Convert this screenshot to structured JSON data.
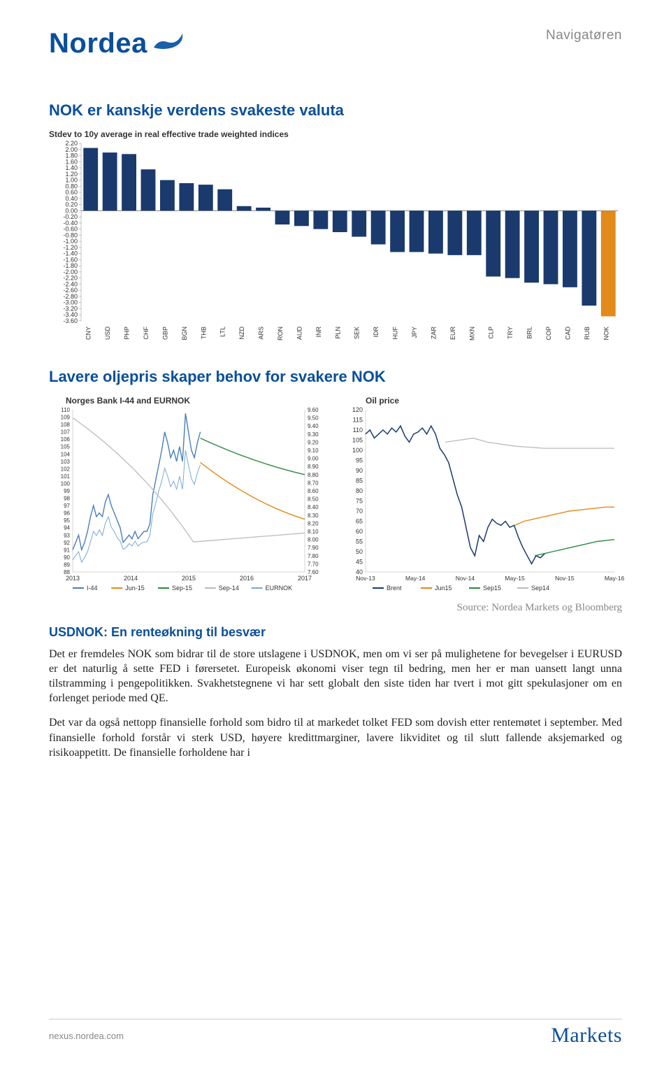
{
  "header_right": "Navigatøren",
  "logo_text": "Nordea",
  "heading1": "NOK er kanskje verdens svakeste valuta",
  "heading2": "Lavere oljepris skaper behov for svakere NOK",
  "source_text": "Source: Nordea Markets og Bloomberg",
  "subheading": "USDNOK: En renteøkning til besvær",
  "para1": "Det er fremdeles NOK som bidrar til de store utslagene i USDNOK, men om vi ser på mulighetene for bevegelser i EURUSD er det naturlig å sette FED i førersetet. Europeisk økonomi viser tegn til bedring, men her er man uansett langt unna tilstramming i pengepolitikken. Svakhetstegnene vi har sett globalt den siste tiden har tvert i mot gitt spekulasjoner om en forlenget periode med QE.",
  "para2": "Det var da også nettopp finansielle forhold som bidro til at markedet tolket FED som dovish etter rentemøtet i september. Med finansielle forhold forstår vi sterk USD, høyere kredittmarginer, lavere likviditet og til slutt fallende aksjemarked og risikoappetitt. De finansielle forholdene har i",
  "footer_left": "nexus.nordea.com",
  "footer_right": "Markets",
  "chart1": {
    "title": "Stdev to 10y average in real effective trade weighted indices",
    "y_min": -3.6,
    "y_max": 2.2,
    "y_step": 0.2,
    "bar_color": "#1a3a6e",
    "highlight_color": "#e28a1a",
    "categories": [
      "CNY",
      "USD",
      "PHP",
      "CHF",
      "GBP",
      "BGN",
      "THB",
      "LTL",
      "NZD",
      "ARS",
      "RON",
      "AUD",
      "INR",
      "PLN",
      "SEK",
      "IDR",
      "HUF",
      "JPY",
      "ZAR",
      "EUR",
      "MXN",
      "CLP",
      "TRY",
      "BRL",
      "COP",
      "CAD",
      "RUB",
      "NOK"
    ],
    "values": [
      2.05,
      1.9,
      1.85,
      1.35,
      1.0,
      0.9,
      0.85,
      0.7,
      0.15,
      0.1,
      -0.45,
      -0.5,
      -0.6,
      -0.7,
      -0.85,
      -1.1,
      -1.35,
      -1.35,
      -1.4,
      -1.45,
      -1.45,
      -2.15,
      -2.2,
      -2.35,
      -2.4,
      -2.5,
      -3.1,
      -3.45
    ],
    "highlight_index": 27
  },
  "chart2": {
    "title": "Norges Bank I-44 and EURNOK",
    "y_left_min": 88,
    "y_left_max": 110,
    "y_left_step": 1,
    "y_right_min": 7.6,
    "y_right_max": 9.6,
    "y_right_step": 0.1,
    "x_labels": [
      "2013",
      "2014",
      "2015",
      "2016",
      "2017"
    ],
    "i44_color": "#4a7fb8",
    "eurnok_color": "#7aa8d0",
    "jun15_color": "#e28a1a",
    "sep15_color": "#2a8a3e",
    "sep14_color": "#bbb",
    "legend": [
      "I-44",
      "Jun-15",
      "Sep-15",
      "Sep-14",
      "EURNOK"
    ],
    "i44": [
      91,
      92,
      93,
      91,
      92,
      93.5,
      95.5,
      97,
      95.5,
      96,
      95.5,
      97.5,
      98.5,
      97,
      96,
      95,
      94,
      92,
      92.5,
      93,
      92.5,
      93.5,
      92.5,
      93,
      93.5,
      93.5,
      94.5,
      98.5,
      100.5,
      102.5,
      104.5,
      107,
      105.5,
      103.5,
      104.5,
      103,
      105,
      103,
      109.5,
      107,
      104.5,
      103.5,
      105.5,
      107
    ],
    "eurnok": [
      7.75,
      7.8,
      7.85,
      7.72,
      7.78,
      7.85,
      7.97,
      8.1,
      8.05,
      8.12,
      8.05,
      8.2,
      8.28,
      8.15,
      8.1,
      8.02,
      7.98,
      7.88,
      7.9,
      7.95,
      7.92,
      7.98,
      7.92,
      7.95,
      7.97,
      7.97,
      8.05,
      8.32,
      8.45,
      8.6,
      8.72,
      8.88,
      8.78,
      8.65,
      8.72,
      8.62,
      8.78,
      8.62,
      9.1,
      8.92,
      8.75,
      8.68,
      8.82,
      8.92
    ],
    "sep14_line": {
      "start_x": 0.52,
      "start_y": 7.97,
      "end_y": 8.08,
      "color": "#bbb"
    },
    "jun15_line": {
      "start_x": 0.55,
      "start_y": 8.95,
      "mid_y": 8.45,
      "end_y": 8.25,
      "color": "#e28a1a"
    },
    "sep15_line": {
      "start_x": 0.55,
      "start_y": 9.25,
      "mid_y": 8.95,
      "end_y": 8.8,
      "color": "#2a8a3e"
    }
  },
  "chart3": {
    "title": "Oil price",
    "y_min": 40,
    "y_max": 120,
    "y_step": 5,
    "x_labels": [
      "Nov-13",
      "May-14",
      "Nov-14",
      "May-15",
      "Nov-15",
      "May-16"
    ],
    "brent_color": "#1a3a6e",
    "jun15_color": "#e28a1a",
    "sep15_color": "#2a8a3e",
    "sep14_color": "#bbb",
    "legend": [
      "Brent",
      "Jun15",
      "Sep15",
      "Sep14"
    ],
    "brent": [
      108,
      110,
      106,
      108,
      110,
      108,
      111,
      109,
      112,
      107,
      104,
      108,
      109,
      111,
      108,
      112,
      108,
      101,
      98,
      94,
      86,
      78,
      72,
      62,
      52,
      48,
      58,
      55,
      62,
      66,
      64,
      63,
      65,
      62,
      63,
      57,
      52,
      48,
      44,
      48,
      47,
      49
    ],
    "sep14_line": [
      104,
      105,
      106,
      104,
      103,
      102,
      101.5,
      101,
      101,
      101,
      101,
      101,
      101
    ],
    "jun15_line": {
      "start_x": 0.6,
      "points": [
        63,
        65,
        66,
        67,
        68,
        69,
        70,
        70.5,
        71,
        71.5,
        72,
        72
      ]
    },
    "sep15_line": {
      "start_x": 0.68,
      "points": [
        48,
        49,
        50,
        51,
        52,
        53,
        54,
        55,
        55.5,
        56
      ]
    }
  }
}
